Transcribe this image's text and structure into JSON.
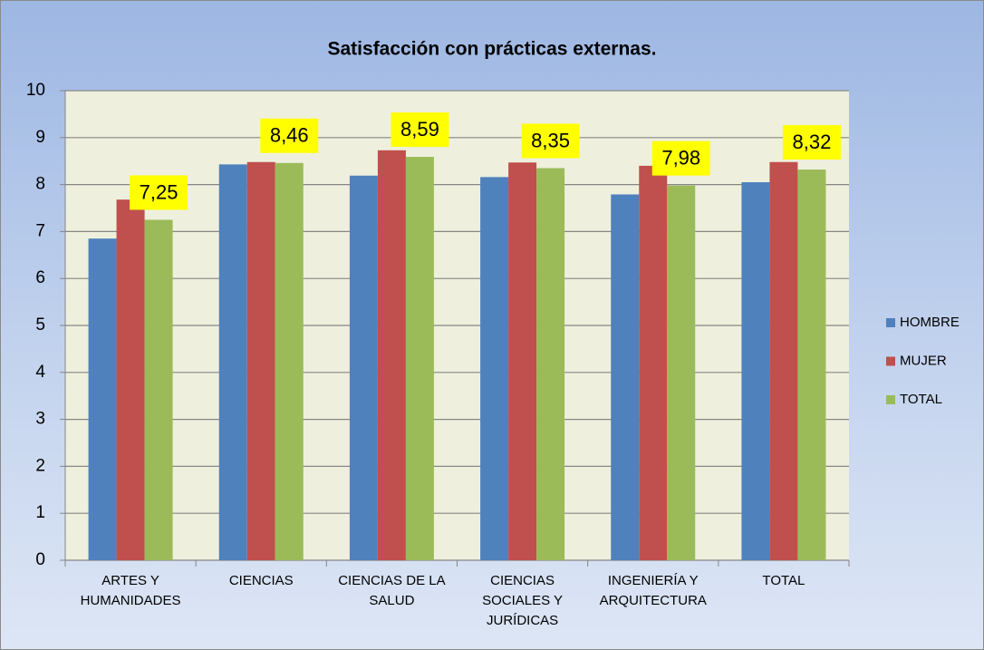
{
  "chart_data": {
    "type": "bar",
    "title": "Satisfacción con prácticas externas.",
    "categories": [
      "ARTES Y HUMANIDADES",
      "CIENCIAS",
      "CIENCIAS DE LA SALUD",
      "CIENCIAS SOCIALES Y JURÍDICAS",
      "INGENIERÍA Y ARQUITECTURA",
      "TOTAL"
    ],
    "series": [
      {
        "name": "HOMBRE",
        "color": "#4f81bd",
        "values": [
          6.85,
          8.43,
          8.19,
          8.16,
          7.79,
          8.05
        ]
      },
      {
        "name": "MUJER",
        "color": "#c0504d",
        "values": [
          7.68,
          8.48,
          8.73,
          8.47,
          8.4,
          8.48
        ]
      },
      {
        "name": "TOTAL",
        "color": "#9bbb59",
        "values": [
          7.25,
          8.46,
          8.59,
          8.35,
          7.98,
          8.32
        ],
        "value_labels": [
          "7,25",
          "8,46",
          "8,59",
          "8,35",
          "7,98",
          "8,32"
        ]
      }
    ],
    "ylim": [
      0,
      10
    ],
    "yticks": [
      0,
      1,
      2,
      3,
      4,
      5,
      6,
      7,
      8,
      9,
      10
    ],
    "grid": true,
    "legend": "right"
  }
}
